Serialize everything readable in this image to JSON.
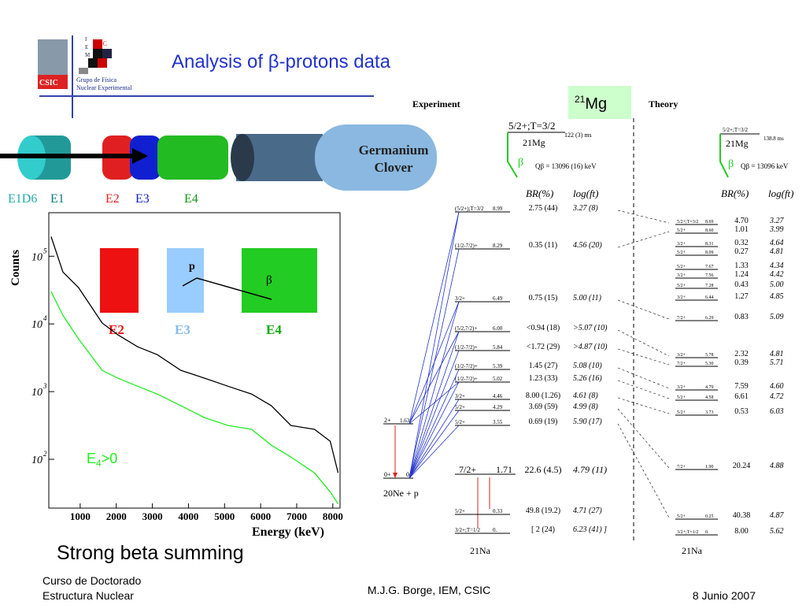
{
  "header": {
    "title": "Analysis of β-protons data",
    "logo": {
      "letters": [
        "I",
        "E",
        "M"
      ],
      "csic": "CSIC",
      "badge": "CSIC",
      "group": [
        "Grupo de Física",
        "Nuclear Experimental"
      ]
    }
  },
  "detector": {
    "labels": [
      "E1D6",
      "E1",
      "E2",
      "E3",
      "E4"
    ],
    "clover": [
      "Germanium",
      "Clover"
    ]
  },
  "chart_data": {
    "type": "line",
    "x_label": "Energy (keV)",
    "y_label": "Counts",
    "x": [
      194,
      521,
      956,
      1610,
      2046,
      2590,
      3135,
      3789,
      4442,
      5096,
      5749,
      6294,
      6839,
      7492,
      7928,
      8146
    ],
    "series": [
      {
        "color": "#000000",
        "values": [
          195000,
          58500,
          34300,
          10300,
          6900,
          4600,
          3520,
          2060,
          1580,
          1200,
          920,
          620,
          316,
          277,
          185,
          63
        ]
      },
      {
        "color": "#22ee22",
        "values": [
          30000,
          13400,
          6000,
          2060,
          1580,
          1200,
          920,
          620,
          413,
          316,
          277,
          162,
          108,
          63,
          33,
          22
        ]
      }
    ],
    "xlim": [
      130,
      8200
    ],
    "ylim": [
      19,
      440000
    ],
    "log_y": true,
    "xticks": [
      1000,
      2000,
      3000,
      4000,
      5000,
      6000,
      7000,
      8000
    ],
    "yticks": [
      {
        "value": 100,
        "label": "10",
        "exponent": "2"
      },
      {
        "value": 1000,
        "label": "10",
        "exponent": "3"
      },
      {
        "value": 10000,
        "label": "10",
        "exponent": "4"
      },
      {
        "value": 100000,
        "label": "10",
        "exponent": "5"
      }
    ],
    "annotation": {
      "text": "E",
      "sub": "4",
      "rest": ">0"
    }
  },
  "inset": {
    "labels": [
      "E2",
      "E3",
      "E4"
    ],
    "p": "p",
    "beta": "β"
  },
  "caption": "Strong beta summing",
  "scheme": {
    "experiment": "Experiment",
    "theory": "Theory",
    "nucleus": "21",
    "nucleus_name": "Mg",
    "br": "BR(%)",
    "logft": "log(ft)",
    "exp_parent": {
      "spin": "5/2+;T=3/2",
      "name": "21Mg",
      "halflife": "122 (3) ms",
      "beta": "β",
      "q": "Qβ = 13096 (16) keV"
    },
    "th_parent": {
      "spin": "5/2+;T=3/2",
      "name": "21Mg",
      "halflife": "138.8 ms",
      "beta": "β",
      "q": "Qβ = 13096 keV"
    },
    "ne": {
      "l1": "2+",
      "e1": "1.63",
      "l0": "0+",
      "e0": "0",
      "name": "20Ne + p"
    },
    "na": "21Na",
    "exp_levels": [
      [
        "(5/2+);T=3/2",
        "8.99",
        "2.75 (44)",
        "3.27 (8)"
      ],
      [
        "(1/2-7/2)+",
        "8.29",
        "0.35 (11)",
        "4.56 (20)"
      ],
      [
        "3/2+",
        "6.49",
        "0.75 (15)",
        "5.00 (11)"
      ],
      [
        "(5/2,7/2)+",
        "6.00",
        "<0.94 (18)",
        ">5.07 (10)"
      ],
      [
        "(1/2-7/2)+",
        "5.84",
        "<1.72 (29)",
        ">4.87 (10)"
      ],
      [
        "(1/2-7/2)+",
        "5.39",
        "1.45 (27)",
        "5.08 (10)"
      ],
      [
        "(1/2-7/2)+",
        "5.02",
        "1.23 (33)",
        "5.26 (16)"
      ],
      [
        "3/2+",
        "4.46",
        "8.00 (1.26)",
        "4.61 (8)"
      ],
      [
        "5/2+",
        "4.29",
        "3.69 (59)",
        "4.99 (8)"
      ],
      [
        "5/2+",
        "3.55",
        "0.69 (19)",
        "5.90 (17)"
      ],
      [
        "7/2+",
        "1.71",
        "22.6 (4.5)",
        "4.79 (11)"
      ],
      [
        "5/2+",
        "0.33",
        "49.8 (19.2)",
        "4.71 (27)"
      ],
      [
        "3/2+;T=1/2",
        "0.",
        "[ 2 (24)",
        "6.23 (41) ]"
      ]
    ],
    "th_levels": [
      [
        "5/2+;T=3/2",
        "8.69",
        "4.70",
        "3.27"
      ],
      [
        "5/2+",
        "8.60",
        "1.01",
        "3.99"
      ],
      [
        "3/2+",
        "8.31",
        "0.32",
        "4.64"
      ],
      [
        "5/2+",
        "8.09",
        "0.27",
        "4.81"
      ],
      [
        "5/2+",
        "7.67",
        "1.33",
        "4.34"
      ],
      [
        "3/2+",
        "7.56",
        "1.24",
        "4.42"
      ],
      [
        "5/2+",
        "7.28",
        "0.43",
        "5.00"
      ],
      [
        "3/2+",
        "6.44",
        "1.27",
        "4.85"
      ],
      [
        "7/2+",
        "6.29",
        "0.83",
        "5.09"
      ],
      [
        "3/2+",
        "5.78",
        "2.32",
        "4.81"
      ],
      [
        "7/2+",
        "5.30",
        "0.39",
        "5.71"
      ],
      [
        "3/2+",
        "4.79",
        "7.59",
        "4.60"
      ],
      [
        "5/2+",
        "4.58",
        "6.61",
        "4.72"
      ],
      [
        "5/2+",
        "3.73",
        "0.53",
        "6.03"
      ],
      [
        "7/2+",
        "1.90",
        "20.24",
        "4.88"
      ],
      [
        "5/2+",
        "0.25",
        "40.38",
        "4.87"
      ],
      [
        "3/2+;T=1/2",
        "0.",
        "8.00",
        "5.62"
      ]
    ]
  },
  "footer": {
    "course": [
      "Curso de Doctorado",
      "Estructura Nuclear"
    ],
    "author": "M.J.G. Borge, IEM, CSIC",
    "date": "8 Junio 2007"
  }
}
